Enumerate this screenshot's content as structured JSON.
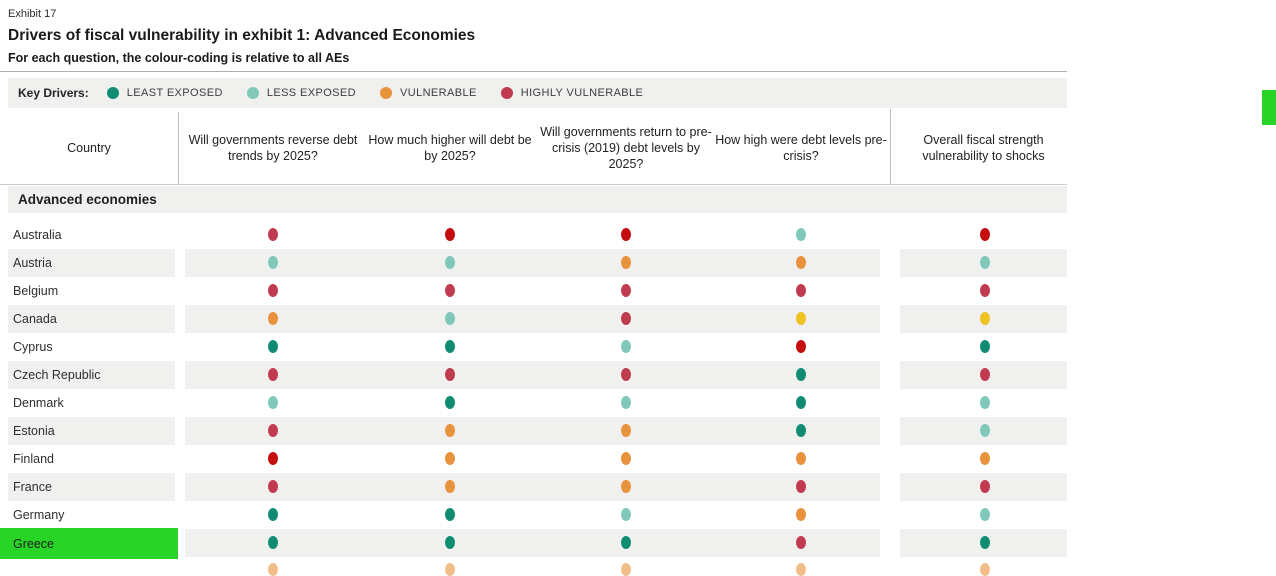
{
  "exhibit_label": "Exhibit 17",
  "title": "Drivers of fiscal vulnerability in exhibit 1: Advanced Economies",
  "subtitle": "For each question, the colour-coding is relative to all AEs",
  "legend": {
    "label": "Key Drivers:",
    "items": [
      {
        "label": "LEAST EXPOSED",
        "rating": "least-exposed"
      },
      {
        "label": "LESS EXPOSED",
        "rating": "less-exposed"
      },
      {
        "label": "VULNERABLE",
        "rating": "vulnerable"
      },
      {
        "label": "HIGHLY VULNERABLE",
        "rating": "highly-vulnerable"
      }
    ]
  },
  "colors": {
    "least-exposed": "#108c73",
    "less-exposed": "#7fc8ba",
    "moderate": "#f0c420",
    "vulnerable": "#e8923c",
    "highly-vulnerable": "#c03a50",
    "extreme": "#c40e0e",
    "row_stripe": "#f0f0ef",
    "highlight_green": "#28d425"
  },
  "section_header": "Advanced economies",
  "chart_data": {
    "type": "table",
    "title": "Drivers of fiscal vulnerability in exhibit 1: Advanced Economies",
    "subtitle": "For each question, the colour-coding is relative to all AEs",
    "legend_entries": [
      "LEAST EXPOSED",
      "LESS EXPOSED",
      "VULNERABLE",
      "HIGHLY VULNERABLE"
    ],
    "country_column_header": "Country",
    "question_columns": [
      "Will governments reverse debt trends by 2025?",
      "How much higher will debt be by 2025?",
      "Will governments return to pre-crisis (2019) debt levels by 2025?",
      "How high were debt levels pre-crisis?"
    ],
    "overall_column": "Overall fiscal strength vulnerability to shocks",
    "rows": [
      {
        "country": "Australia",
        "highlighted": false,
        "ratings": [
          "highly-vulnerable",
          "extreme",
          "extreme",
          "less-exposed",
          "extreme"
        ]
      },
      {
        "country": "Austria",
        "highlighted": false,
        "ratings": [
          "less-exposed",
          "less-exposed",
          "vulnerable",
          "vulnerable",
          "less-exposed"
        ]
      },
      {
        "country": "Belgium",
        "highlighted": false,
        "ratings": [
          "highly-vulnerable",
          "highly-vulnerable",
          "highly-vulnerable",
          "highly-vulnerable",
          "highly-vulnerable"
        ]
      },
      {
        "country": "Canada",
        "highlighted": false,
        "ratings": [
          "vulnerable",
          "less-exposed",
          "highly-vulnerable",
          "moderate",
          "moderate"
        ]
      },
      {
        "country": "Cyprus",
        "highlighted": false,
        "ratings": [
          "least-exposed",
          "least-exposed",
          "less-exposed",
          "extreme",
          "least-exposed"
        ]
      },
      {
        "country": "Czech Republic",
        "highlighted": false,
        "ratings": [
          "highly-vulnerable",
          "highly-vulnerable",
          "highly-vulnerable",
          "least-exposed",
          "highly-vulnerable"
        ]
      },
      {
        "country": "Denmark",
        "highlighted": false,
        "ratings": [
          "less-exposed",
          "least-exposed",
          "less-exposed",
          "least-exposed",
          "less-exposed"
        ]
      },
      {
        "country": "Estonia",
        "highlighted": false,
        "ratings": [
          "highly-vulnerable",
          "vulnerable",
          "vulnerable",
          "least-exposed",
          "less-exposed"
        ]
      },
      {
        "country": "Finland",
        "highlighted": false,
        "ratings": [
          "extreme",
          "vulnerable",
          "vulnerable",
          "vulnerable",
          "vulnerable"
        ]
      },
      {
        "country": "France",
        "highlighted": false,
        "ratings": [
          "highly-vulnerable",
          "vulnerable",
          "vulnerable",
          "highly-vulnerable",
          "highly-vulnerable"
        ]
      },
      {
        "country": "Germany",
        "highlighted": false,
        "ratings": [
          "least-exposed",
          "least-exposed",
          "less-exposed",
          "vulnerable",
          "less-exposed"
        ]
      },
      {
        "country": "Greece",
        "highlighted": true,
        "ratings": [
          "least-exposed",
          "least-exposed",
          "least-exposed",
          "highly-vulnerable",
          "least-exposed"
        ]
      }
    ],
    "partial_next_row_ratings": [
      "vulnerable",
      "vulnerable",
      "vulnerable",
      "vulnerable",
      "vulnerable"
    ]
  }
}
